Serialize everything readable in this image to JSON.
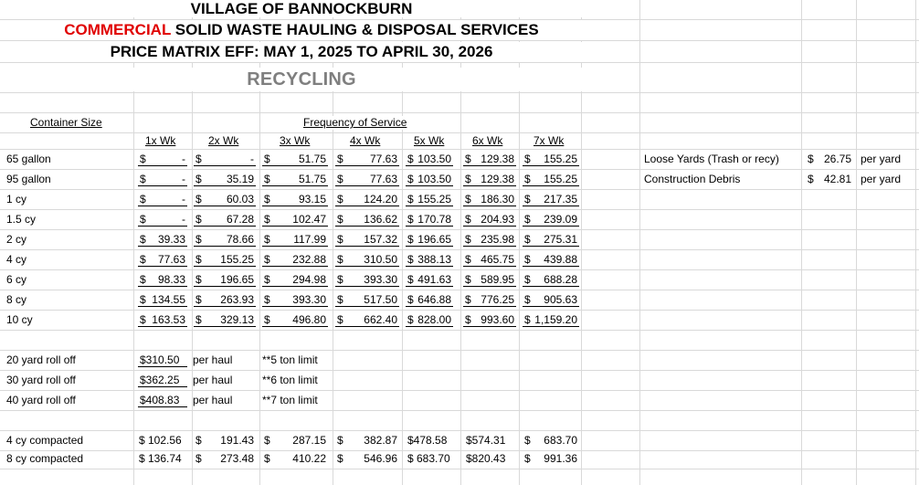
{
  "header": {
    "line1": "VILLAGE OF BANNOCKBURN",
    "line2_red": "COMMERCIAL",
    "line2_rest": " SOLID WASTE HAULING & DISPOSAL SERVICES",
    "line3": "PRICE MATRIX EFF: MAY 1, 2025 TO APRIL 30, 2026",
    "line4": "RECYCLING"
  },
  "labels": {
    "container_size": "Container Size",
    "frequency": "Frequency of Service"
  },
  "frequencies": [
    "1x Wk",
    "2x Wk",
    "3x Wk",
    "4x Wk",
    "5x Wk",
    "6x Wk",
    "7x Wk"
  ],
  "rows": [
    {
      "size": "65 gallon",
      "prices": [
        "$          -",
        "$          -",
        "$        51.75",
        "$      77.63",
        "$ 103.50",
        "$ 129.38",
        "$   155.25"
      ]
    },
    {
      "size": "95 gallon",
      "prices": [
        "$          -",
        "$      35.19",
        "$        51.75",
        "$      77.63",
        "$ 103.50",
        "$ 129.38",
        "$   155.25"
      ]
    },
    {
      "size": "1 cy",
      "prices": [
        "$          -",
        "$      60.03",
        "$        93.15",
        "$    124.20",
        "$ 155.25",
        "$ 186.30",
        "$   217.35"
      ]
    },
    {
      "size": "1.5 cy",
      "prices": [
        "$          -",
        "$      67.28",
        "$      102.47",
        "$    136.62",
        "$ 170.78",
        "$ 204.93",
        "$   239.09"
      ]
    },
    {
      "size": "2 cy",
      "prices": [
        "$  39.33",
        "$      78.66",
        "$      117.99",
        "$    157.32",
        "$ 196.65",
        "$ 235.98",
        "$   275.31"
      ]
    },
    {
      "size": "4 cy",
      "prices": [
        "$  77.63",
        "$    155.25",
        "$      232.88",
        "$    310.50",
        "$ 388.13",
        "$ 465.75",
        "$   439.88"
      ]
    },
    {
      "size": "6 cy",
      "prices": [
        "$  98.33",
        "$    196.65",
        "$      294.98",
        "$    393.30",
        "$ 491.63",
        "$ 589.95",
        "$   688.28"
      ]
    },
    {
      "size": "8 cy",
      "prices": [
        "$ 134.55",
        "$    263.93",
        "$      393.30",
        "$    517.50",
        "$ 646.88",
        "$ 776.25",
        "$   905.63"
      ]
    },
    {
      "size": "10 cy",
      "prices": [
        "$ 163.53",
        "$    329.13",
        "$      496.80",
        "$    662.40",
        "$ 828.00",
        "$ 993.60",
        "$ 1,159.20"
      ]
    }
  ],
  "cells": {
    "r0": [
      [
        "$",
        "-"
      ],
      [
        "$",
        "-"
      ],
      [
        "$",
        "51.75"
      ],
      [
        "$",
        "77.63"
      ],
      [
        "$",
        "103.50"
      ],
      [
        "$",
        "129.38"
      ],
      [
        "$",
        "155.25"
      ]
    ],
    "r1": [
      [
        "$",
        "-"
      ],
      [
        "$",
        "35.19"
      ],
      [
        "$",
        "51.75"
      ],
      [
        "$",
        "77.63"
      ],
      [
        "$",
        "103.50"
      ],
      [
        "$",
        "129.38"
      ],
      [
        "$",
        "155.25"
      ]
    ],
    "r2": [
      [
        "$",
        "-"
      ],
      [
        "$",
        "60.03"
      ],
      [
        "$",
        "93.15"
      ],
      [
        "$",
        "124.20"
      ],
      [
        "$",
        "155.25"
      ],
      [
        "$",
        "186.30"
      ],
      [
        "$",
        "217.35"
      ]
    ],
    "r3": [
      [
        "$",
        "-"
      ],
      [
        "$",
        "67.28"
      ],
      [
        "$",
        "102.47"
      ],
      [
        "$",
        "136.62"
      ],
      [
        "$",
        "170.78"
      ],
      [
        "$",
        "204.93"
      ],
      [
        "$",
        "239.09"
      ]
    ],
    "r4": [
      [
        "$",
        "39.33"
      ],
      [
        "$",
        "78.66"
      ],
      [
        "$",
        "117.99"
      ],
      [
        "$",
        "157.32"
      ],
      [
        "$",
        "196.65"
      ],
      [
        "$",
        "235.98"
      ],
      [
        "$",
        "275.31"
      ]
    ],
    "r5": [
      [
        "$",
        "77.63"
      ],
      [
        "$",
        "155.25"
      ],
      [
        "$",
        "232.88"
      ],
      [
        "$",
        "310.50"
      ],
      [
        "$",
        "388.13"
      ],
      [
        "$",
        "465.75"
      ],
      [
        "$",
        "439.88"
      ]
    ],
    "r6": [
      [
        "$",
        "98.33"
      ],
      [
        "$",
        "196.65"
      ],
      [
        "$",
        "294.98"
      ],
      [
        "$",
        "393.30"
      ],
      [
        "$",
        "491.63"
      ],
      [
        "$",
        "589.95"
      ],
      [
        "$",
        "688.28"
      ]
    ],
    "r7": [
      [
        "$",
        "134.55"
      ],
      [
        "$",
        "263.93"
      ],
      [
        "$",
        "393.30"
      ],
      [
        "$",
        "517.50"
      ],
      [
        "$",
        "646.88"
      ],
      [
        "$",
        "776.25"
      ],
      [
        "$",
        "905.63"
      ]
    ],
    "r8": [
      [
        "$",
        "163.53"
      ],
      [
        "$",
        "329.13"
      ],
      [
        "$",
        "496.80"
      ],
      [
        "$",
        "662.40"
      ],
      [
        "$",
        "828.00"
      ],
      [
        "$",
        "993.60"
      ],
      [
        "$",
        "1,159.20"
      ]
    ]
  },
  "rolloffs": [
    {
      "size": "20 yard roll off",
      "price": "$310.50",
      "unit": "per haul",
      "limit": "**5 ton limit"
    },
    {
      "size": "30 yard roll off",
      "price": "$362.25",
      "unit": "per haul",
      "limit": "**6 ton limit"
    },
    {
      "size": "40 yard roll off",
      "price": "$408.83",
      "unit": "per haul",
      "limit": "**7 ton limit"
    }
  ],
  "compacted": [
    {
      "size": "4 cy compacted",
      "c1": "$ 102.56",
      "c2": [
        "$",
        "191.43"
      ],
      "c3": [
        "$",
        "287.15"
      ],
      "c4": [
        "$",
        "382.87"
      ],
      "c5": "$478.58",
      "c6": "$574.31",
      "c7": [
        "$",
        "683.70"
      ]
    },
    {
      "size": "8 cy compacted",
      "c1": "$ 136.74",
      "c2": [
        "$",
        "273.48"
      ],
      "c3": [
        "$",
        "410.22"
      ],
      "c4": [
        "$",
        "546.96"
      ],
      "c5": "$ 683.70",
      "c6": "$820.43",
      "c7": [
        "$",
        "991.36"
      ]
    }
  ],
  "extras": [
    {
      "label": "Loose Yards (Trash or recy)",
      "sym": "$",
      "amt": "26.75",
      "unit": "per yard"
    },
    {
      "label": "Construction Debris",
      "sym": "$",
      "amt": "42.81",
      "unit": "per yard"
    }
  ]
}
